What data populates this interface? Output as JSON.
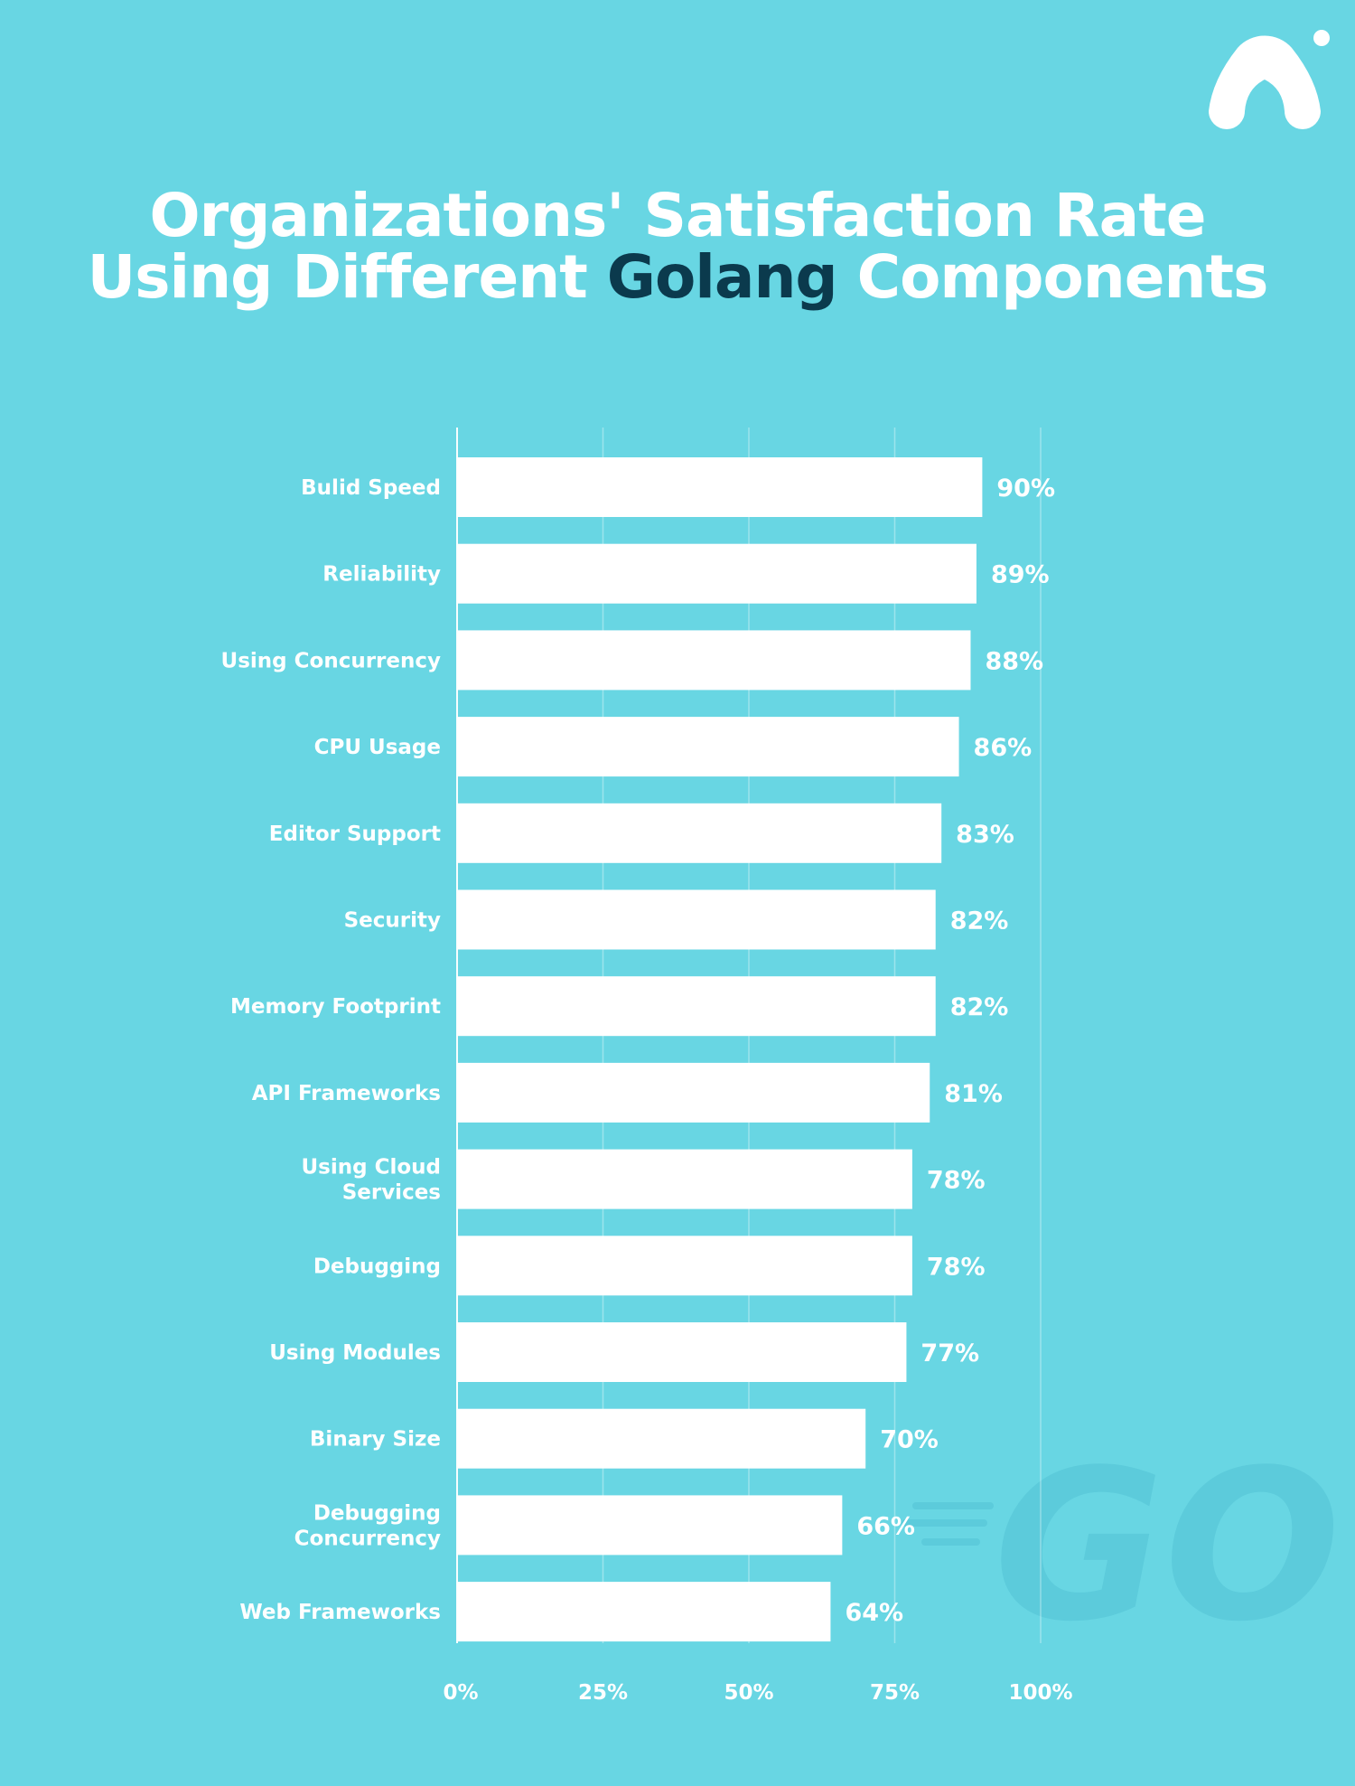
{
  "title": {
    "line1": "Organizations' Satisfaction Rate",
    "line2_prefix": "Using Different ",
    "line2_accent": "Golang",
    "line2_suffix": " Components"
  },
  "colors": {
    "background": "#68d6e3",
    "bar": "#ffffff",
    "accent_text": "#0b3a4d",
    "watermark": "#5ccbdb"
  },
  "watermark_text": "GO",
  "chart_data": {
    "type": "bar",
    "orientation": "horizontal",
    "title": "Organizations' Satisfaction Rate Using Different Golang Components",
    "xlabel": "",
    "ylabel": "",
    "xlim": [
      0,
      100
    ],
    "grid": true,
    "categories": [
      [
        "Bulid Speed"
      ],
      [
        "Reliability"
      ],
      [
        "Using Concurrency"
      ],
      [
        "CPU Usage"
      ],
      [
        "Editor Support"
      ],
      [
        "Security"
      ],
      [
        "Memory Footprint"
      ],
      [
        "API Frameworks"
      ],
      [
        "Using Cloud",
        "Services"
      ],
      [
        "Debugging"
      ],
      [
        "Using Modules"
      ],
      [
        "Binary Size"
      ],
      [
        "Debugging",
        "Concurrency"
      ],
      [
        "Web Frameworks"
      ]
    ],
    "values": [
      90,
      89,
      88,
      86,
      83,
      82,
      82,
      81,
      78,
      78,
      77,
      70,
      66,
      64
    ],
    "value_labels": [
      "90%",
      "89%",
      "88%",
      "86%",
      "83%",
      "82%",
      "82%",
      "81%",
      "78%",
      "78%",
      "77%",
      "70%",
      "66%",
      "64%"
    ],
    "ticks": [
      0,
      25,
      50,
      75,
      100
    ],
    "tick_labels": [
      "0%",
      "25%",
      "50%",
      "75%",
      "100%"
    ]
  }
}
